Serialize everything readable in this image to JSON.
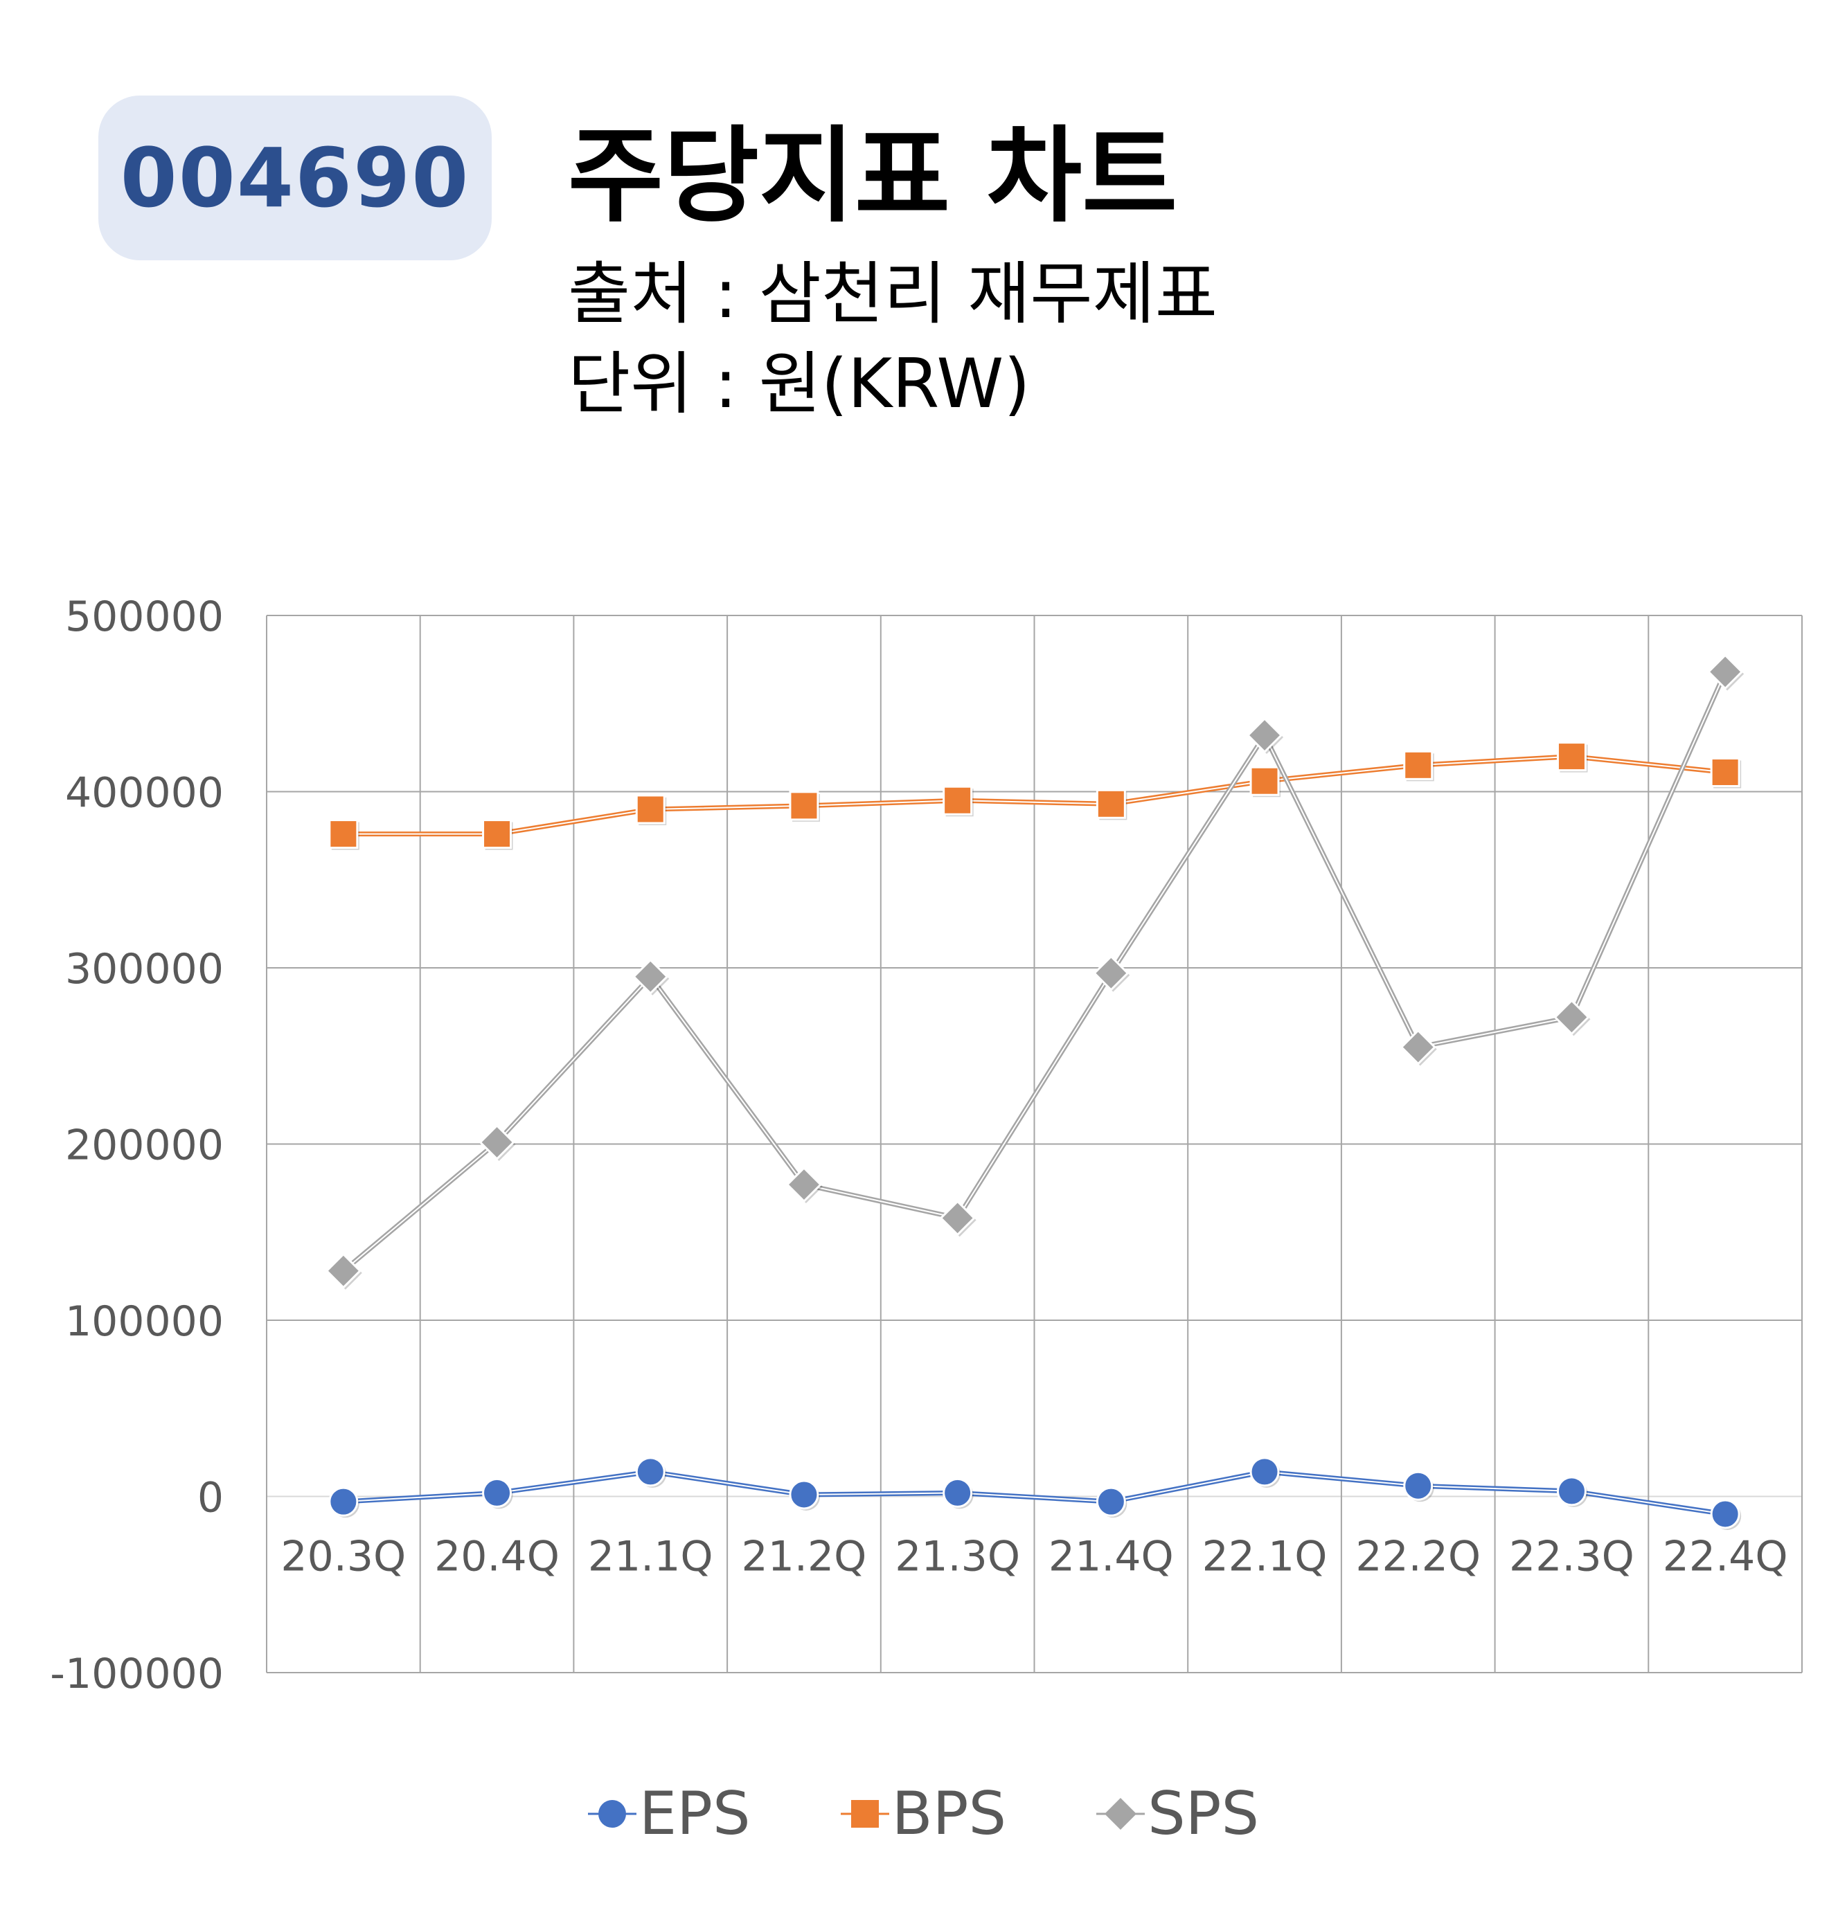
{
  "header": {
    "code": "004690",
    "title": "주당지표 차트",
    "source": "출처 : 삼천리 재무제표",
    "unit": "단위 : 원(KRW)"
  },
  "colors": {
    "badge_bg": "#e3e9f5",
    "badge_text": "#2c4f8e",
    "eps": "#4472c4",
    "bps": "#ed7d31",
    "sps": "#a5a5a5",
    "grid": "#a6a6a6",
    "tick_text": "#595959"
  },
  "legend": [
    {
      "name": "EPS",
      "marker": "circle-icon"
    },
    {
      "name": "BPS",
      "marker": "square-icon"
    },
    {
      "name": "SPS",
      "marker": "diamond-icon"
    }
  ],
  "chart_data": {
    "type": "line",
    "categories": [
      "20.3Q",
      "20.4Q",
      "21.1Q",
      "21.2Q",
      "21.3Q",
      "21.4Q",
      "22.1Q",
      "22.2Q",
      "22.3Q",
      "22.4Q"
    ],
    "ylim": [
      -100000,
      500000
    ],
    "yticks": [
      "-100000",
      "0",
      "100000",
      "200000",
      "300000",
      "400000",
      "500000"
    ],
    "grid": true,
    "legend_position": "bottom",
    "series": [
      {
        "name": "EPS",
        "marker": "circle",
        "values": [
          -3000,
          2000,
          14000,
          1000,
          2000,
          -3000,
          14000,
          6000,
          3000,
          -10000
        ]
      },
      {
        "name": "BPS",
        "marker": "square",
        "values": [
          376000,
          376000,
          390000,
          392000,
          395000,
          393000,
          406000,
          415000,
          420000,
          411000
        ]
      },
      {
        "name": "SPS",
        "marker": "diamond",
        "values": [
          128000,
          201000,
          295000,
          177000,
          158000,
          297000,
          432000,
          255000,
          272000,
          468000
        ]
      }
    ]
  }
}
